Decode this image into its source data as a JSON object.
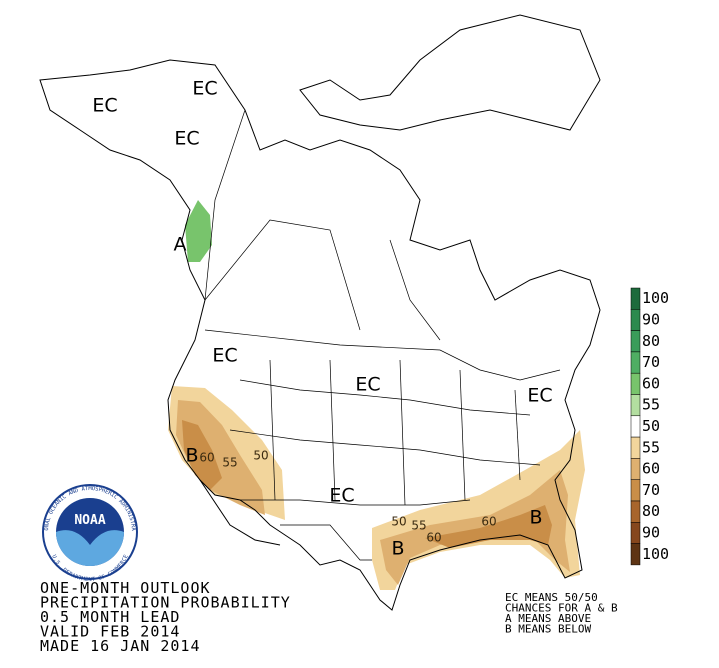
{
  "map_labels": [
    "EC",
    "EC",
    "EC",
    "A",
    "EC",
    "EC",
    "EC",
    "B",
    "EC",
    "B",
    "B"
  ],
  "contour_labels": [
    "60",
    "55",
    "50",
    "50",
    "55",
    "60",
    "60"
  ],
  "legend": [
    {
      "label": "100",
      "color": "#1d6b3c"
    },
    {
      "label": "90",
      "color": "#2b8a4e"
    },
    {
      "label": "80",
      "color": "#3a9c5a"
    },
    {
      "label": "70",
      "color": "#4fae63"
    },
    {
      "label": "60",
      "color": "#78c46c"
    },
    {
      "label": "55",
      "color": "#b3dea0"
    },
    {
      "label": "50",
      "color": "#ffffff"
    },
    {
      "label": "55",
      "color": "#f2d59c"
    },
    {
      "label": "60",
      "color": "#deb070"
    },
    {
      "label": "70",
      "color": "#c98e48"
    },
    {
      "label": "80",
      "color": "#a8652c"
    },
    {
      "label": "90",
      "color": "#86471e"
    },
    {
      "label": "100",
      "color": "#5e3414"
    }
  ],
  "logo": {
    "name": "NOAA",
    "ring_top": "NATIONAL OCEANIC AND ATMOSPHERIC ADMINISTRATION",
    "ring_bottom": "U.S. DEPARTMENT OF COMMERCE"
  },
  "footer": [
    "ONE-MONTH OUTLOOK",
    "PRECIPITATION PROBABILITY",
    "0.5 MONTH LEAD",
    "VALID FEB 2014",
    "MADE 16 JAN 2014"
  ],
  "note": [
    "EC MEANS 50/50",
    "CHANCES FOR A & B",
    "A MEANS ABOVE",
    "B MEANS BELOW"
  ]
}
